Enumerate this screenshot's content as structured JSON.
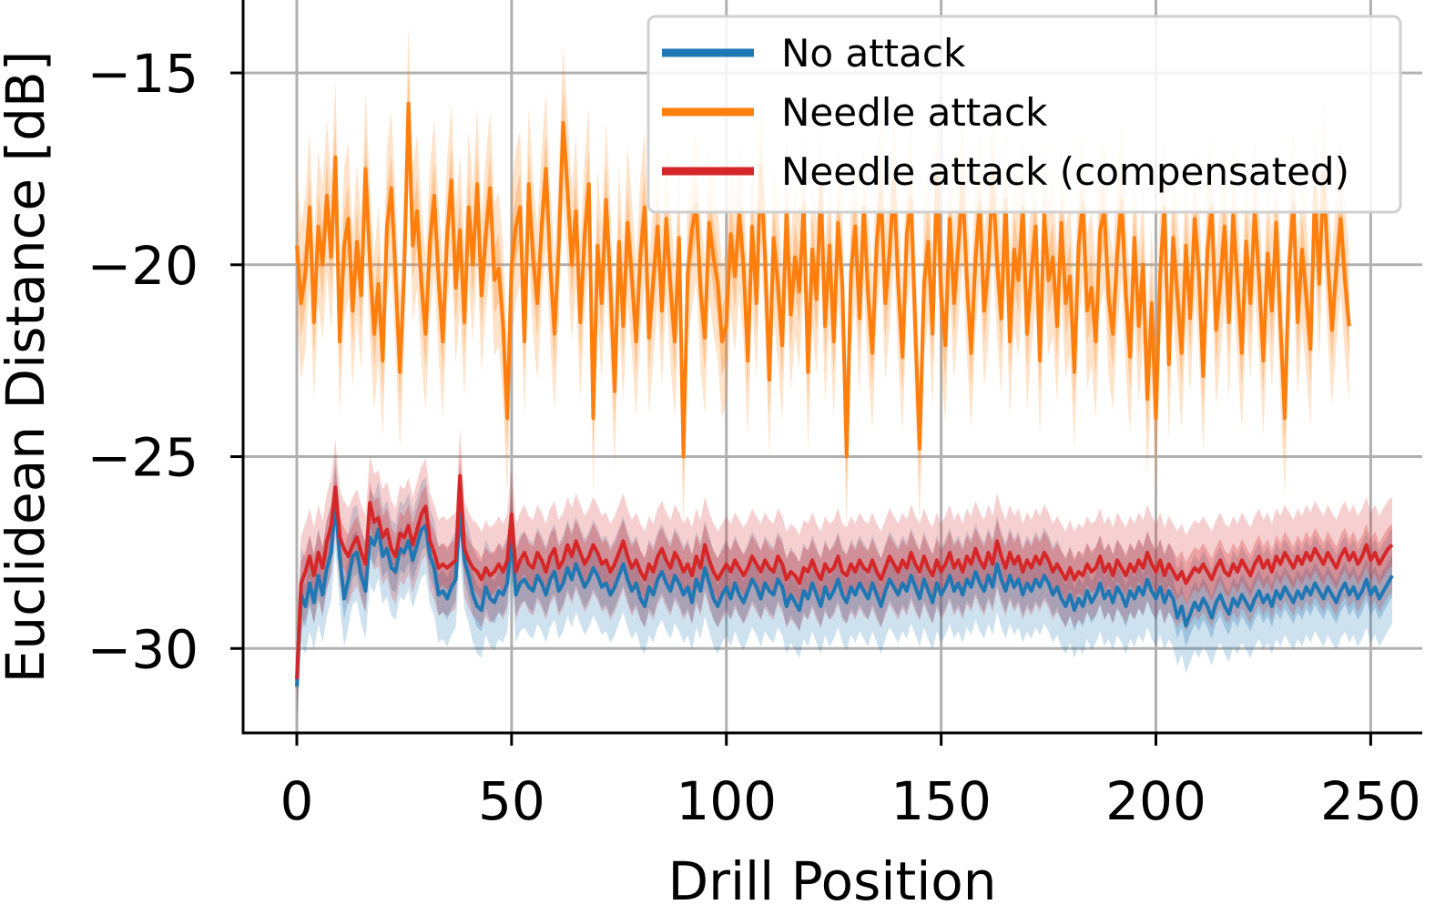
{
  "chart_data": {
    "type": "line",
    "xlabel": "Drill Position",
    "ylabel": "Euclidean Distance [dB]",
    "xlim": [
      -12.5,
      262
    ],
    "ylim": [
      -32.2,
      -13.1
    ],
    "xticks": [
      0,
      50,
      100,
      150,
      200,
      250
    ],
    "xtick_labels": [
      "0",
      "50",
      "100",
      "150",
      "200",
      "250"
    ],
    "yticks": [
      -30,
      -25,
      -20,
      -15
    ],
    "ytick_labels": [
      "−30",
      "−25",
      "−20",
      "−15"
    ],
    "grid": true,
    "legend_position": "top-right",
    "x_start": 0,
    "x_step": 1,
    "band_halfwidth": [
      0.55,
      1.25
    ],
    "series": [
      {
        "name": "No attack",
        "color": "#1f77b4",
        "values": [
          -31.0,
          -28.6,
          -28.9,
          -28.3,
          -28.8,
          -28.1,
          -28.6,
          -27.9,
          -27.5,
          -26.2,
          -27.6,
          -28.7,
          -28.2,
          -27.6,
          -27.5,
          -28.1,
          -28.5,
          -27.1,
          -27.3,
          -26.9,
          -27.6,
          -27.4,
          -27.9,
          -28.0,
          -27.4,
          -27.5,
          -27.2,
          -27.7,
          -27.3,
          -26.9,
          -26.8,
          -27.6,
          -27.9,
          -28.6,
          -28.5,
          -28.7,
          -28.4,
          -28.2,
          -26.4,
          -27.7,
          -28.1,
          -28.6,
          -28.9,
          -29.0,
          -28.4,
          -28.7,
          -28.8,
          -28.5,
          -28.6,
          -28.3,
          -27.0,
          -28.6,
          -28.3,
          -28.2,
          -28.4,
          -28.5,
          -28.1,
          -28.3,
          -28.6,
          -28.2,
          -28.0,
          -28.5,
          -28.3,
          -27.9,
          -28.2,
          -27.8,
          -28.1,
          -28.4,
          -28.2,
          -27.9,
          -28.1,
          -28.4,
          -28.3,
          -28.6,
          -28.4,
          -28.1,
          -27.8,
          -28.2,
          -28.5,
          -28.3,
          -28.7,
          -28.9,
          -28.4,
          -28.6,
          -28.2,
          -28.0,
          -28.3,
          -28.5,
          -28.1,
          -28.3,
          -28.6,
          -28.4,
          -28.8,
          -28.2,
          -28.5,
          -27.9,
          -28.3,
          -28.7,
          -28.9,
          -28.6,
          -28.4,
          -28.7,
          -28.3,
          -28.6,
          -28.8,
          -28.5,
          -28.2,
          -28.4,
          -28.7,
          -28.3,
          -28.5,
          -28.6,
          -28.2,
          -28.4,
          -28.9,
          -28.6,
          -28.8,
          -29.0,
          -28.5,
          -28.7,
          -28.3,
          -28.6,
          -28.9,
          -28.4,
          -28.7,
          -28.5,
          -28.2,
          -28.6,
          -28.8,
          -28.4,
          -28.6,
          -28.3,
          -28.5,
          -28.7,
          -28.3,
          -28.6,
          -28.9,
          -28.5,
          -28.2,
          -28.4,
          -28.6,
          -28.3,
          -28.5,
          -28.1,
          -28.4,
          -28.7,
          -28.2,
          -28.5,
          -28.8,
          -28.3,
          -28.6,
          -28.4,
          -28.1,
          -28.5,
          -28.3,
          -28.6,
          -28.2,
          -28.4,
          -28.0,
          -28.3,
          -28.5,
          -28.1,
          -28.4,
          -27.8,
          -28.2,
          -28.5,
          -28.1,
          -28.4,
          -28.2,
          -28.6,
          -28.3,
          -28.5,
          -28.2,
          -28.4,
          -28.1,
          -28.3,
          -28.6,
          -28.4,
          -28.7,
          -28.9,
          -28.6,
          -29.0,
          -28.7,
          -28.9,
          -28.5,
          -28.8,
          -28.6,
          -28.3,
          -28.7,
          -28.5,
          -28.8,
          -28.4,
          -28.6,
          -28.9,
          -28.5,
          -28.7,
          -28.4,
          -28.6,
          -28.2,
          -28.5,
          -28.7,
          -28.4,
          -28.8,
          -28.5,
          -28.7,
          -29.2,
          -28.9,
          -29.4,
          -29.1,
          -28.8,
          -29.0,
          -28.7,
          -28.9,
          -29.2,
          -28.8,
          -28.6,
          -28.9,
          -29.1,
          -28.7,
          -28.9,
          -28.6,
          -28.8,
          -29.0,
          -28.7,
          -28.5,
          -28.8,
          -28.6,
          -28.9,
          -28.5,
          -28.7,
          -28.4,
          -28.6,
          -28.8,
          -28.5,
          -28.7,
          -28.4,
          -28.6,
          -28.3,
          -28.5,
          -28.7,
          -28.4,
          -28.6,
          -28.8,
          -28.5,
          -28.3,
          -28.6,
          -28.4,
          -28.7,
          -28.5,
          -28.2,
          -28.6,
          -28.4,
          -28.7,
          -28.5,
          -28.3,
          -28.1
        ]
      },
      {
        "name": "Needle attack",
        "color": "#ff7f0e",
        "values": [
          -19.5,
          -21.0,
          -20.2,
          -18.5,
          -21.5,
          -19.0,
          -20.0,
          -18.2,
          -19.8,
          -17.2,
          -22.0,
          -19.5,
          -18.8,
          -21.2,
          -19.4,
          -20.8,
          -17.5,
          -19.9,
          -21.8,
          -20.5,
          -22.5,
          -19.0,
          -18.0,
          -20.3,
          -22.8,
          -20.2,
          -15.8,
          -19.5,
          -18.6,
          -20.5,
          -21.8,
          -19.4,
          -18.2,
          -20.4,
          -22.0,
          -19.2,
          -17.8,
          -20.6,
          -19.1,
          -21.5,
          -18.5,
          -20.0,
          -17.9,
          -20.8,
          -19.2,
          -18.0,
          -20.4,
          -20.1,
          -21.5,
          -24.0,
          -20.0,
          -19.0,
          -18.5,
          -22.0,
          -17.9,
          -19.8,
          -21.0,
          -19.0,
          -17.5,
          -20.0,
          -21.8,
          -19.5,
          -16.3,
          -18.0,
          -20.0,
          -18.6,
          -21.5,
          -19.2,
          -17.9,
          -24.0,
          -19.5,
          -21.0,
          -18.3,
          -20.5,
          -23.3,
          -19.4,
          -21.6,
          -18.9,
          -20.3,
          -22.0,
          -19.7,
          -18.5,
          -21.9,
          -20.4,
          -19.0,
          -21.2,
          -18.8,
          -20.6,
          -22.0,
          -19.3,
          -25.0,
          -20.2,
          -19.1,
          -18.4,
          -20.7,
          -21.9,
          -18.9,
          -19.8,
          -20.5,
          -22.0,
          -21.6,
          -19.2,
          -20.3,
          -18.7,
          -20.0,
          -22.5,
          -19.0,
          -21.0,
          -17.4,
          -19.8,
          -23.0,
          -19.3,
          -20.5,
          -22.1,
          -18.6,
          -21.3,
          -19.8,
          -20.7,
          -18.4,
          -22.8,
          -19.6,
          -20.9,
          -18.0,
          -21.6,
          -19.5,
          -22.0,
          -18.9,
          -20.5,
          -25.0,
          -20.2,
          -19.0,
          -21.4,
          -18.5,
          -20.8,
          -22.3,
          -19.4,
          -18.1,
          -21.0,
          -19.7,
          -17.8,
          -20.5,
          -22.4,
          -19.2,
          -18.3,
          -21.7,
          -24.8,
          -20.5,
          -19.4,
          -21.8,
          -17.6,
          -20.8,
          -22.1,
          -18.8,
          -21.0,
          -19.5,
          -17.9,
          -20.4,
          -22.3,
          -19.8,
          -18.4,
          -21.2,
          -20.0,
          -17.7,
          -19.9,
          -21.4,
          -18.3,
          -22.0,
          -19.6,
          -20.4,
          -18.5,
          -21.8,
          -20.2,
          -19.0,
          -22.5,
          -18.7,
          -20.4,
          -19.8,
          -21.6,
          -18.9,
          -21.0,
          -20.3,
          -22.8,
          -19.5,
          -18.4,
          -21.2,
          -20.6,
          -22.0,
          -19.1,
          -18.6,
          -20.9,
          -21.8,
          -19.7,
          -18.3,
          -20.8,
          -22.4,
          -19.3,
          -21.6,
          -20.0,
          -23.5,
          -21.0,
          -24.0,
          -20.2,
          -18.5,
          -22.6,
          -19.3,
          -20.8,
          -22.3,
          -19.5,
          -21.4,
          -18.8,
          -20.2,
          -22.9,
          -19.6,
          -18.5,
          -21.7,
          -20.4,
          -19.0,
          -21.5,
          -18.7,
          -20.5,
          -22.3,
          -19.4,
          -21.0,
          -18.6,
          -20.3,
          -22.5,
          -19.7,
          -21.2,
          -18.9,
          -21.6,
          -24.0,
          -20.0,
          -18.4,
          -21.5,
          -19.6,
          -20.8,
          -22.2,
          -18.0,
          -20.5,
          -17.6,
          -19.9,
          -21.7,
          -20.1,
          -18.8,
          -20.4,
          -21.6
        ]
      },
      {
        "name": "Needle attack (compensated)",
        "color": "#d62728",
        "values": [
          -30.8,
          -28.3,
          -28.0,
          -27.6,
          -28.1,
          -27.5,
          -27.9,
          -27.2,
          -26.8,
          -25.8,
          -27.1,
          -27.4,
          -27.6,
          -27.3,
          -27.1,
          -27.5,
          -27.8,
          -26.2,
          -26.7,
          -26.6,
          -27.1,
          -26.9,
          -27.4,
          -27.6,
          -27.0,
          -27.1,
          -26.8,
          -27.3,
          -26.9,
          -26.5,
          -26.3,
          -27.2,
          -27.5,
          -27.9,
          -27.8,
          -27.9,
          -27.8,
          -27.7,
          -25.5,
          -27.4,
          -27.7,
          -27.9,
          -28.0,
          -28.2,
          -27.9,
          -28.1,
          -28.0,
          -27.8,
          -28.0,
          -27.7,
          -26.5,
          -28.0,
          -27.7,
          -27.5,
          -27.8,
          -27.9,
          -27.5,
          -27.7,
          -28.0,
          -27.6,
          -27.4,
          -27.9,
          -27.7,
          -27.3,
          -27.6,
          -27.2,
          -27.5,
          -27.8,
          -27.6,
          -27.3,
          -27.5,
          -27.8,
          -27.7,
          -28.0,
          -27.8,
          -27.5,
          -27.2,
          -27.6,
          -27.9,
          -27.7,
          -28.0,
          -28.2,
          -27.8,
          -28.0,
          -27.6,
          -27.4,
          -27.7,
          -27.9,
          -27.5,
          -27.7,
          -28.0,
          -27.8,
          -28.1,
          -27.6,
          -27.9,
          -27.3,
          -27.7,
          -28.0,
          -28.2,
          -28.0,
          -27.8,
          -28.0,
          -27.7,
          -27.9,
          -28.1,
          -27.9,
          -27.6,
          -27.8,
          -28.0,
          -27.7,
          -27.9,
          -28.0,
          -27.6,
          -27.8,
          -28.2,
          -28.0,
          -28.1,
          -28.3,
          -27.9,
          -28.0,
          -27.7,
          -28.0,
          -28.2,
          -27.8,
          -28.0,
          -27.9,
          -27.6,
          -28.0,
          -28.1,
          -27.8,
          -28.0,
          -27.7,
          -27.9,
          -28.0,
          -27.7,
          -28.0,
          -28.2,
          -27.9,
          -27.6,
          -27.8,
          -28.0,
          -27.7,
          -27.9,
          -27.5,
          -27.8,
          -28.0,
          -27.6,
          -27.9,
          -28.1,
          -27.7,
          -28.0,
          -27.8,
          -27.5,
          -27.9,
          -27.7,
          -28.0,
          -27.6,
          -27.8,
          -27.4,
          -27.7,
          -27.9,
          -27.5,
          -27.8,
          -27.2,
          -27.6,
          -27.9,
          -27.5,
          -27.8,
          -27.6,
          -28.0,
          -27.7,
          -27.9,
          -27.6,
          -27.8,
          -27.5,
          -27.7,
          -28.0,
          -27.8,
          -28.0,
          -28.2,
          -27.9,
          -28.2,
          -28.0,
          -28.1,
          -27.8,
          -28.0,
          -27.9,
          -27.6,
          -28.0,
          -27.8,
          -28.1,
          -27.7,
          -27.9,
          -28.1,
          -27.8,
          -28.0,
          -27.7,
          -27.9,
          -27.5,
          -27.8,
          -28.0,
          -27.7,
          -28.1,
          -27.8,
          -28.0,
          -28.2,
          -28.0,
          -28.3,
          -28.1,
          -27.9,
          -28.0,
          -27.8,
          -28.0,
          -28.2,
          -27.9,
          -27.7,
          -28.0,
          -28.1,
          -27.8,
          -28.0,
          -27.7,
          -27.9,
          -28.1,
          -27.8,
          -27.6,
          -27.9,
          -27.7,
          -28.0,
          -27.6,
          -27.8,
          -27.5,
          -27.7,
          -27.9,
          -27.6,
          -27.8,
          -27.5,
          -27.7,
          -27.4,
          -27.6,
          -27.8,
          -27.5,
          -27.7,
          -27.9,
          -27.6,
          -27.4,
          -27.7,
          -27.5,
          -27.8,
          -27.6,
          -27.3,
          -27.7,
          -27.5,
          -27.8,
          -27.6,
          -27.4,
          -27.3
        ]
      }
    ]
  }
}
